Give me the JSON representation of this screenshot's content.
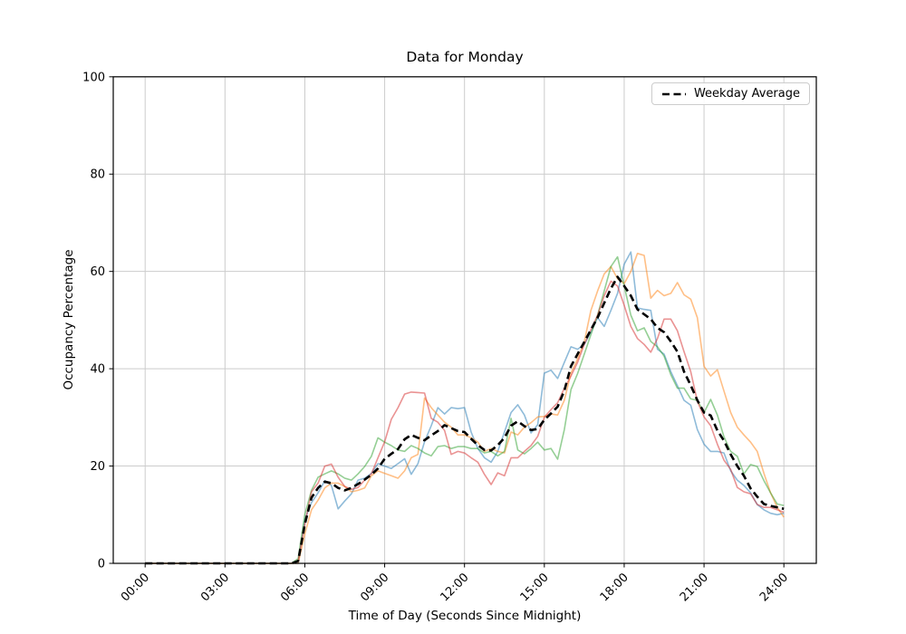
{
  "title": "Data for Monday",
  "xlabel": "Time of Day (Seconds Since Midnight)",
  "ylabel": "Occupancy Percentage",
  "legend": {
    "label": "Weekday Average",
    "position": "upper right"
  },
  "colors": {
    "grid": "#cccccc",
    "spine": "#000000",
    "average_line": "#000000",
    "series_blue": "#1f77b4",
    "series_orange": "#ff7f0e",
    "series_green": "#2ca02c",
    "series_red": "#d62728"
  },
  "chart_data": {
    "type": "line",
    "title": "Data for Monday",
    "xlabel": "Time of Day (Seconds Since Midnight)",
    "ylabel": "Occupancy Percentage",
    "grid": true,
    "legend_position": "upper right",
    "ylim": [
      0,
      100
    ],
    "xlim_hours": [
      -1.2,
      25.2
    ],
    "x_tick_hours": [
      0,
      3,
      6,
      9,
      12,
      15,
      18,
      21,
      24
    ],
    "x_tick_labels": [
      "00:00",
      "03:00",
      "06:00",
      "09:00",
      "12:00",
      "15:00",
      "18:00",
      "21:00",
      "24:00"
    ],
    "y_tick_values": [
      0,
      20,
      40,
      60,
      80,
      100
    ],
    "y_tick_labels": [
      "0",
      "20",
      "40",
      "60",
      "80",
      "100"
    ],
    "x_start_hours": 0,
    "x_step_hours": 0.25,
    "series": [
      {
        "id": "series-1",
        "color": "#1f77b4",
        "alpha": 0.5,
        "style": "solid",
        "width": 1.6,
        "values": [
          0,
          0,
          0,
          0,
          0,
          0,
          0,
          0,
          0,
          0,
          0,
          0,
          0,
          0,
          0,
          0,
          0,
          0,
          0,
          0,
          0,
          0,
          0,
          0,
          9,
          12.5,
          14.5,
          17,
          16,
          11.2,
          12.8,
          14.3,
          17.1,
          17.5,
          18.5,
          20.5,
          20,
          19.5,
          20.5,
          21.5,
          18.3,
          20.5,
          25,
          28.3,
          32,
          30.7,
          32,
          31.8,
          32,
          27,
          23.6,
          21.7,
          20.8,
          23,
          27,
          31,
          32.6,
          30.5,
          26.8,
          28.5,
          39.1,
          39.7,
          38,
          41.3,
          44.5,
          44,
          45,
          47.5,
          50.5,
          48.7,
          52,
          55.5,
          61.5,
          64,
          52.5,
          52.2,
          52,
          44,
          43,
          39.4,
          36.5,
          33.5,
          32.5,
          27.5,
          24.5,
          23,
          23,
          22.7,
          19,
          17.1,
          16,
          14.5,
          12.1,
          11,
          10.3,
          10,
          10.3
        ]
      },
      {
        "id": "series-2",
        "color": "#ff7f0e",
        "alpha": 0.5,
        "style": "solid",
        "width": 1.6,
        "values": [
          0,
          0,
          0,
          0,
          0,
          0,
          0,
          0,
          0,
          0,
          0,
          0,
          0,
          0,
          0,
          0,
          0,
          0,
          0,
          0,
          0,
          0,
          0,
          0,
          6,
          11,
          13,
          15.5,
          16.5,
          16.5,
          15.8,
          14.7,
          15,
          15.5,
          18,
          19,
          18.5,
          18,
          17.5,
          19,
          21.7,
          22.4,
          34,
          32,
          30.5,
          29,
          28,
          26.4,
          26.4,
          25.8,
          24.9,
          23,
          23.6,
          23,
          22.7,
          27,
          26.4,
          28,
          28.9,
          30.1,
          30.2,
          30.7,
          30.5,
          33.5,
          39.1,
          42,
          45.5,
          52,
          56,
          59.5,
          61,
          58.5,
          57.5,
          60,
          63.7,
          63.3,
          54.5,
          56.1,
          55,
          55.5,
          57.7,
          55.2,
          54.3,
          50.5,
          40.5,
          38.5,
          39.8,
          35.4,
          31,
          28,
          26.4,
          24.9,
          23,
          18.5,
          14.5,
          11.5,
          9.5
        ]
      },
      {
        "id": "series-3",
        "color": "#2ca02c",
        "alpha": 0.5,
        "style": "solid",
        "width": 1.6,
        "values": [
          0,
          0,
          0,
          0,
          0,
          0,
          0,
          0,
          0,
          0,
          0,
          0,
          0,
          0,
          0,
          0,
          0,
          0,
          0,
          0,
          0,
          0,
          0,
          1,
          10,
          15,
          17.7,
          18.4,
          19,
          18.4,
          17.5,
          17.1,
          18.4,
          19.9,
          22,
          25.8,
          24.9,
          24.2,
          23.3,
          23,
          24.2,
          23.6,
          22.7,
          22.1,
          24,
          24.2,
          23.6,
          24,
          24,
          23.6,
          23.6,
          22.7,
          23,
          22.1,
          23,
          29.8,
          23.3,
          22.5,
          23.6,
          24.9,
          23.3,
          23.6,
          21.4,
          27.5,
          35.7,
          39,
          43,
          47,
          51,
          56,
          61,
          63,
          57,
          51,
          47.8,
          48.4,
          45.6,
          44.5,
          42.6,
          38.8,
          36,
          36,
          33.8,
          33.5,
          31,
          33.7,
          30.5,
          26,
          23,
          22,
          18.4,
          20.3,
          19.9,
          17,
          14.5,
          12.2,
          11.9
        ]
      },
      {
        "id": "series-4",
        "color": "#d62728",
        "alpha": 0.5,
        "style": "solid",
        "width": 1.6,
        "values": [
          0,
          0,
          0,
          0,
          0,
          0,
          0,
          0,
          0,
          0,
          0,
          0,
          0,
          0,
          0,
          0,
          0,
          0,
          0,
          0,
          0,
          0,
          0,
          0.5,
          8,
          14.7,
          16.5,
          20,
          20.4,
          17.7,
          15.8,
          15.2,
          15.6,
          17.1,
          18.4,
          21.7,
          25,
          29.6,
          32,
          34.8,
          35.2,
          35.1,
          35,
          29.8,
          29,
          27.3,
          22.4,
          23,
          22.7,
          21.7,
          20.8,
          18.3,
          16.2,
          18.6,
          18,
          21.7,
          21.7,
          23,
          24.2,
          26.1,
          30,
          31.6,
          33,
          36,
          38.5,
          41.3,
          45,
          48,
          51,
          55,
          58,
          57,
          53,
          48.7,
          46.2,
          45,
          43.4,
          46.2,
          50.2,
          50.2,
          47.8,
          43.5,
          39.4,
          33.3,
          30.1,
          28.3,
          24.5,
          21.2,
          19.3,
          15.6,
          14.7,
          14.3,
          12.1,
          11.5,
          11.5,
          11,
          10.5
        ]
      },
      {
        "id": "weekday-average",
        "label": "Weekday Average",
        "color": "#000000",
        "alpha": 1,
        "style": "dashed",
        "width": 2.6,
        "values": [
          0,
          0,
          0,
          0,
          0,
          0,
          0,
          0,
          0,
          0,
          0,
          0,
          0,
          0,
          0,
          0,
          0,
          0,
          0,
          0,
          0,
          0,
          0,
          0.5,
          8,
          13.5,
          15.5,
          16.8,
          16.5,
          15.5,
          15,
          15.5,
          16.3,
          17.2,
          18.2,
          19.5,
          21.5,
          22.5,
          23.5,
          25.5,
          26.4,
          25.8,
          25.3,
          26.3,
          27.2,
          28.4,
          27.8,
          27.2,
          27,
          25.6,
          24.3,
          23.3,
          23.2,
          24.3,
          25.8,
          28.3,
          29.2,
          28.2,
          27.4,
          27.6,
          29.5,
          30.8,
          32.2,
          35.5,
          40.5,
          43,
          45.5,
          48,
          50.5,
          53.5,
          56.5,
          58.9,
          57,
          55,
          52.2,
          51.2,
          50.2,
          48.4,
          47.5,
          45.6,
          43.5,
          39.4,
          36.6,
          33.5,
          31,
          30.4,
          27.3,
          25.2,
          22.4,
          20,
          18,
          15.4,
          13.7,
          12.2,
          11.8,
          11.5,
          11.2
        ]
      }
    ]
  }
}
